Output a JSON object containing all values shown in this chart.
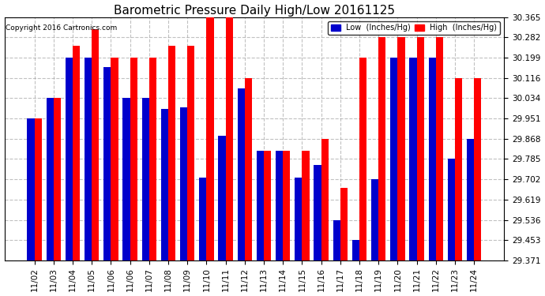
{
  "title": "Barometric Pressure Daily High/Low 20161125",
  "copyright": "Copyright 2016 Cartronics.com",
  "legend_low": "Low  (Inches/Hg)",
  "legend_high": "High  (Inches/Hg)",
  "ylim": [
    29.371,
    30.365
  ],
  "yticks": [
    29.371,
    29.453,
    29.536,
    29.619,
    29.702,
    29.785,
    29.868,
    29.951,
    30.034,
    30.116,
    30.199,
    30.282,
    30.365
  ],
  "dates": [
    "11/02",
    "11/03",
    "11/04",
    "11/05",
    "11/06",
    "11/06",
    "11/07",
    "11/08",
    "11/09",
    "11/10",
    "11/11",
    "11/12",
    "11/13",
    "11/14",
    "11/15",
    "11/16",
    "11/17",
    "11/18",
    "11/19",
    "11/20",
    "11/21",
    "11/22",
    "11/23",
    "11/24"
  ],
  "low_values": [
    29.951,
    30.034,
    30.199,
    30.199,
    30.16,
    30.034,
    30.034,
    29.99,
    29.995,
    29.71,
    29.88,
    30.075,
    29.82,
    29.82,
    29.71,
    29.76,
    29.536,
    29.453,
    29.702,
    30.199,
    30.199,
    30.199,
    29.785,
    29.868
  ],
  "high_values": [
    29.951,
    30.034,
    30.248,
    30.316,
    30.199,
    30.199,
    30.199,
    30.248,
    30.248,
    30.365,
    30.365,
    30.116,
    29.82,
    29.82,
    29.82,
    29.868,
    29.668,
    30.199,
    30.282,
    30.282,
    30.282,
    30.282,
    30.116,
    30.116
  ],
  "bar_width": 0.38,
  "background_color": "#ffffff",
  "low_color": "#0000cc",
  "high_color": "#ff0000",
  "grid_color": "#999999",
  "title_fontsize": 11,
  "tick_fontsize": 7.5,
  "copyright_fontsize": 6.5
}
